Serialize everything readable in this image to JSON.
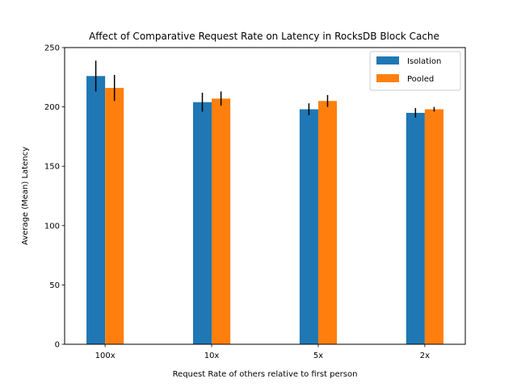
{
  "chart_data": {
    "type": "bar",
    "title": "Affect of Comparative Request Rate on Latency in RocksDB Block Cache",
    "xlabel": "Request Rate of others relative to first person",
    "ylabel": "Average (Mean) Latency",
    "categories": [
      "100x",
      "10x",
      "5x",
      "2x"
    ],
    "ylim": [
      0,
      250
    ],
    "yticks": [
      0,
      50,
      100,
      150,
      200,
      250
    ],
    "series": [
      {
        "name": "Isolation",
        "color": "#1f77b4",
        "values": [
          226,
          204,
          198,
          195
        ],
        "error": [
          13,
          8,
          5,
          4
        ]
      },
      {
        "name": "Pooled",
        "color": "#ff7f0e",
        "values": [
          216,
          207,
          205,
          198
        ],
        "error": [
          11,
          6,
          5,
          2
        ]
      }
    ],
    "error_color": "#000000",
    "grid": false,
    "legend_position": "top-right"
  }
}
